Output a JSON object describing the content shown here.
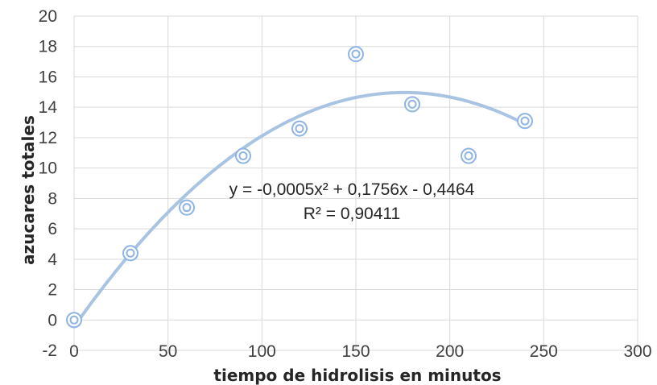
{
  "chart_data": {
    "type": "scatter",
    "title": "",
    "xlabel": "tiempo de hidrolisis en minutos",
    "ylabel": "azucares totales",
    "xlim": [
      0,
      300
    ],
    "ylim": [
      -2,
      20
    ],
    "xticks": [
      0,
      50,
      100,
      150,
      200,
      250,
      300
    ],
    "yticks": [
      -2,
      0,
      2,
      4,
      6,
      8,
      10,
      12,
      14,
      16,
      18,
      20
    ],
    "grid": true,
    "legend": "none",
    "series": [
      {
        "x": [
          0,
          30,
          60,
          90,
          120,
          150,
          180,
          210,
          240
        ],
        "y": [
          0,
          4.4,
          7.4,
          10.8,
          12.6,
          17.5,
          14.2,
          10.8,
          13.1
        ],
        "color": "#8eb4e3"
      }
    ],
    "trendline": {
      "type": "polynomial",
      "order": 2,
      "coefficients": [
        -0.0005,
        0.1756,
        -0.4464
      ],
      "x_range": [
        0,
        240
      ],
      "equation": "y = -0,0005x² + 0,1756x - 0,4464",
      "r_squared": "R² = 0,90411",
      "color": "#a9c4e2"
    }
  }
}
